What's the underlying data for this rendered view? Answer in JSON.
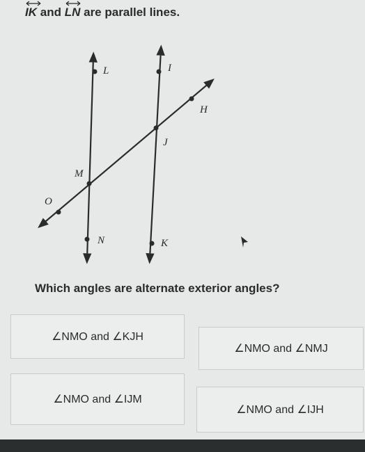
{
  "prompt": {
    "line1": "IK",
    "joiner": "and",
    "line2": "LN",
    "rest": "are parallel lines."
  },
  "diagram": {
    "labels": [
      "L",
      "I",
      "H",
      "J",
      "M",
      "O",
      "N",
      "K"
    ]
  },
  "question": "Which angles are alternate exterior angles?",
  "options": [
    "∠NMO and ∠KJH",
    "∠NMO and ∠NMJ",
    "∠NMO and ∠IJM",
    "∠NMO and ∠IJH"
  ]
}
